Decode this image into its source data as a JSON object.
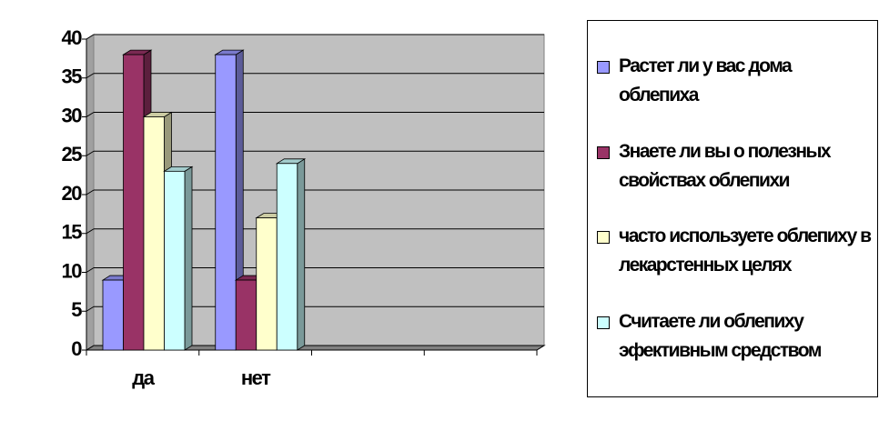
{
  "chart_data": {
    "type": "bar3d",
    "categories": [
      "да",
      "нет",
      null,
      null
    ],
    "series": [
      {
        "name": "Растет ли у вас дома облепиха",
        "color": "#9999ff",
        "values": [
          9,
          38,
          null,
          null
        ]
      },
      {
        "name": "Знаете ли вы о полезных свойствах облепихи",
        "color": "#993366",
        "values": [
          38,
          9,
          null,
          null
        ]
      },
      {
        "name": "часто используете облепиху в лекарстенных целях",
        "color": "#ffffcc",
        "values": [
          30,
          17,
          null,
          null
        ]
      },
      {
        "name": "Считаете ли облепиху эфективным средством",
        "color": "#ccffff",
        "values": [
          23,
          24,
          null,
          null
        ]
      }
    ],
    "ylim": [
      0,
      40
    ],
    "yticks": [
      0,
      5,
      10,
      15,
      20,
      25,
      30,
      35,
      40
    ],
    "grid": true,
    "legend": "right"
  }
}
